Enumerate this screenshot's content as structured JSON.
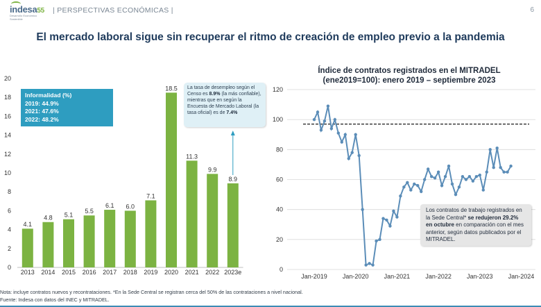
{
  "header": {
    "logo_text": "indesa",
    "logo_num": "55",
    "logo_sub": "Desarrollo Económico Sostenible",
    "section": "| PERSPECTIVAS ECONÓMICAS |",
    "page_number": "6"
  },
  "title": "El mercado laboral sigue sin recuperar el ritmo de creación de empleo previo a la pandemia",
  "informality": {
    "title": "Informalidad (%)",
    "lines": [
      "2019: 44.9%",
      "2021: 47.6%",
      "2022: 48.2%"
    ]
  },
  "census_note": {
    "p1": "La tasa de desempleo según el Censo es ",
    "v1": "8.9%",
    "p2": " (la más confiable), mientras que en según la Encuesta de Mercado Laboral (la tasa oficial) es de ",
    "v2": "7.4%"
  },
  "line_annotation": {
    "p1": "Los contratos de trabajo registrados en la Sede Central* ",
    "b1": "se redujeron 29.2% en octubre",
    "p2": " en comparación con el mes anterior, según datos publicados por el MITRADEL."
  },
  "footnotes": {
    "note": "Nota: incluye contratos nuevos y recontrataciones. *En la Sede Central se registran cerca del 50% de las contrataciones a nivel nacional.",
    "source": "Fuente: Indesa con datos del INEC y MITRADEL."
  },
  "colors": {
    "bar": "#7cb342",
    "line": "#5b8db8",
    "accent": "#2e9dc0",
    "title": "#1f3b5c"
  },
  "chart_data": [
    {
      "type": "bar",
      "title": "",
      "categories": [
        "2013",
        "2014",
        "2015",
        "2016",
        "2017",
        "2018",
        "2019",
        "2020",
        "2021",
        "2022",
        "2023e"
      ],
      "values": [
        4.1,
        4.8,
        5.1,
        5.5,
        6.1,
        6.0,
        7.1,
        18.5,
        11.3,
        9.9,
        8.9
      ],
      "labels": [
        "4.1",
        "4.8",
        "5.1",
        "5.5",
        "6.1",
        "6.0",
        "7.1",
        "18.5",
        "11.3",
        "9.9",
        "8.9"
      ],
      "ylim": [
        0,
        20
      ],
      "yticks": [
        "0",
        "2",
        "4",
        "6",
        "8",
        "10",
        "12",
        "14",
        "16",
        "18",
        "20"
      ],
      "xlabel": "",
      "ylabel": ""
    },
    {
      "type": "line",
      "title_line1": "Índice de contratos registrados en el MITRADEL",
      "title_line2": "(ene2019=100): enero 2019 – septiembre 2023",
      "x_start": "2019-01",
      "values": [
        100,
        105,
        93,
        99,
        109,
        94,
        100,
        91,
        85,
        90,
        74,
        78,
        90,
        76,
        40,
        3,
        4,
        3,
        19,
        20,
        34,
        33,
        29,
        39,
        35,
        49,
        55,
        58,
        53,
        57,
        56,
        52,
        60,
        67,
        62,
        61,
        65,
        56,
        62,
        69,
        57,
        50,
        55,
        62,
        60,
        62,
        59,
        62,
        63,
        53,
        65,
        80,
        68,
        81,
        68,
        65,
        65,
        69
      ],
      "reference_line": 97,
      "ylim": [
        0,
        120
      ],
      "yticks": [
        "0",
        "20",
        "40",
        "60",
        "80",
        "100",
        "120"
      ],
      "xticks": [
        "Jan-2019",
        "Jan-2020",
        "Jan-2021",
        "Jan-2022",
        "Jan-2023",
        "Jan-2024"
      ],
      "xlabel": "",
      "ylabel": ""
    }
  ]
}
